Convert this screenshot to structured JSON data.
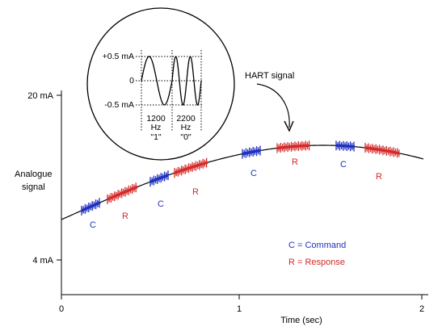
{
  "axis": {
    "y_top_label": "20 mA",
    "y_bottom_label": "4 mA",
    "y_title_line1": "Analogue",
    "y_title_line2": "signal",
    "x_ticks": [
      "0",
      "1",
      "2"
    ],
    "x_title": "Time (sec)"
  },
  "inset": {
    "y_labels": [
      "+0.5 mA",
      "0",
      "-0.5 mA"
    ],
    "freq1": {
      "value": "1200",
      "unit": "Hz",
      "bit": "\"1\""
    },
    "freq2": {
      "value": "2200",
      "unit": "Hz",
      "bit": "\"0\""
    }
  },
  "hart_label": "HART signal",
  "bursts": [
    {
      "letter": "C",
      "kind": "command"
    },
    {
      "letter": "R",
      "kind": "response"
    },
    {
      "letter": "C",
      "kind": "command"
    },
    {
      "letter": "R",
      "kind": "response"
    },
    {
      "letter": "C",
      "kind": "command"
    },
    {
      "letter": "R",
      "kind": "response"
    },
    {
      "letter": "C",
      "kind": "command"
    },
    {
      "letter": "R",
      "kind": "response"
    }
  ],
  "legend": {
    "command": "C = Command",
    "response": "R = Response"
  },
  "colors": {
    "command": "#1f2fbf",
    "response": "#d42a2a",
    "line": "#000000"
  }
}
